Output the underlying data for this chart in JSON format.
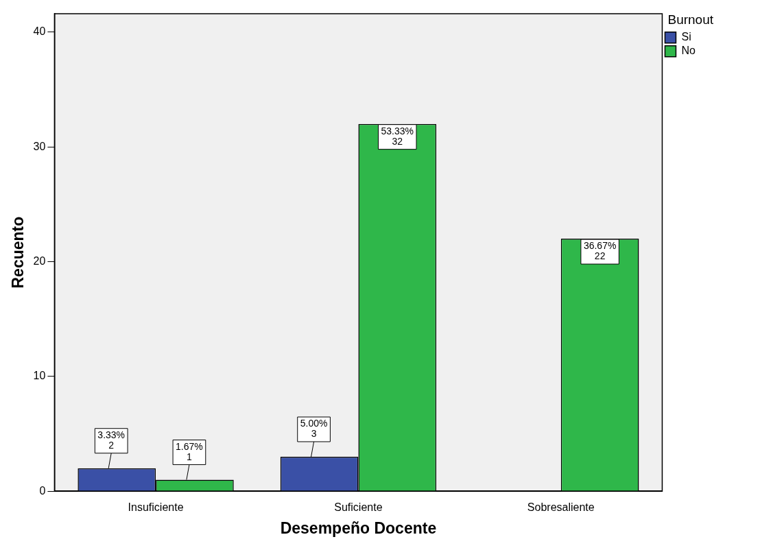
{
  "chart_data": {
    "type": "bar",
    "xlabel": "Desempeño Docente",
    "ylabel": "Recuento",
    "legend_title": "Burnout",
    "categories": [
      "Insuficiente",
      "Suficiente",
      "Sobresaliente"
    ],
    "series": [
      {
        "name": "Si",
        "color": "#3a50a6",
        "values": [
          2,
          3,
          null
        ],
        "value_labels": [
          "3.33%\n2",
          "5.00%\n3",
          null
        ]
      },
      {
        "name": "No",
        "color": "#2fb74a",
        "values": [
          1,
          32,
          22
        ],
        "value_labels": [
          "1.67%\n1",
          "53.33%\n32",
          "36.67%\n22"
        ]
      }
    ],
    "ylim": [
      0,
      41.6
    ],
    "yticks": [
      0,
      10,
      20,
      30,
      40
    ],
    "grid": false,
    "legend": "top right"
  }
}
